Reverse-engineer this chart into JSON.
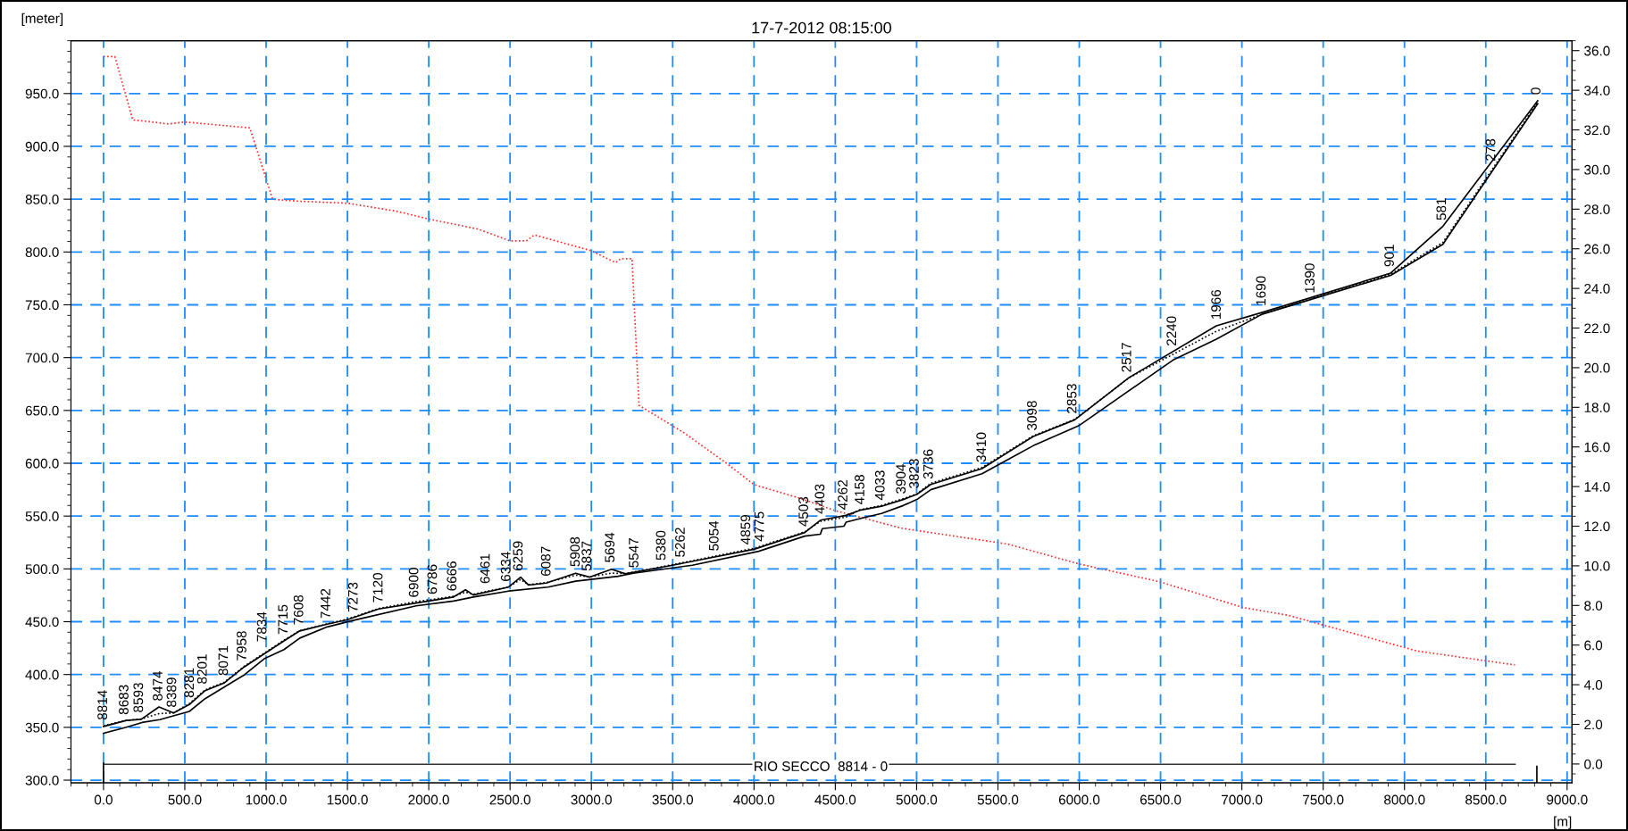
{
  "chart_data": {
    "type": "line",
    "title": "17-7-2012 08:15:00",
    "ylabel": "[meter]",
    "xlabel": "[m]",
    "xlim": [
      -200,
      9030
    ],
    "ylim": [
      297.5,
      1000
    ],
    "y2lim": [
      -0.95,
      36.5
    ],
    "xticks": [
      {
        "value": 0,
        "label": "0.0"
      },
      {
        "value": 500,
        "label": "500.0"
      },
      {
        "value": 1000,
        "label": "1000.0"
      },
      {
        "value": 1500,
        "label": "1500.0"
      },
      {
        "value": 2000,
        "label": "2000.0"
      },
      {
        "value": 2500,
        "label": "2500.0"
      },
      {
        "value": 3000,
        "label": "3000.0"
      },
      {
        "value": 3500,
        "label": "3500.0"
      },
      {
        "value": 4000,
        "label": "4000.0"
      },
      {
        "value": 4500,
        "label": "4500.0"
      },
      {
        "value": 5000,
        "label": "5000.0"
      },
      {
        "value": 5500,
        "label": "5500.0"
      },
      {
        "value": 6000,
        "label": "6000.0"
      },
      {
        "value": 6500,
        "label": "6500.0"
      },
      {
        "value": 7000,
        "label": "7000.0"
      },
      {
        "value": 7500,
        "label": "7500.0"
      },
      {
        "value": 8000,
        "label": "8000.0"
      },
      {
        "value": 8500,
        "label": "8500.0"
      },
      {
        "value": 9000,
        "label": "9000.0"
      }
    ],
    "yticks": [
      {
        "value": 300,
        "label": "300.0"
      },
      {
        "value": 350,
        "label": "350.0"
      },
      {
        "value": 400,
        "label": "400.0"
      },
      {
        "value": 450,
        "label": "450.0"
      },
      {
        "value": 500,
        "label": "500.0"
      },
      {
        "value": 550,
        "label": "550.0"
      },
      {
        "value": 600,
        "label": "600.0"
      },
      {
        "value": 650,
        "label": "650.0"
      },
      {
        "value": 700,
        "label": "700.0"
      },
      {
        "value": 750,
        "label": "750.0"
      },
      {
        "value": 800,
        "label": "800.0"
      },
      {
        "value": 850,
        "label": "850.0"
      },
      {
        "value": 900,
        "label": "900.0"
      },
      {
        "value": 950,
        "label": "950.0"
      }
    ],
    "y2ticks": [
      {
        "value": 0,
        "label": "0.0"
      },
      {
        "value": 2,
        "label": "2.0"
      },
      {
        "value": 4,
        "label": "4.0"
      },
      {
        "value": 6,
        "label": "6.0"
      },
      {
        "value": 8,
        "label": "8.0"
      },
      {
        "value": 10,
        "label": "10.0"
      },
      {
        "value": 12,
        "label": "12.0"
      },
      {
        "value": 14,
        "label": "14.0"
      },
      {
        "value": 16,
        "label": "16.0"
      },
      {
        "value": 18,
        "label": "18.0"
      },
      {
        "value": 20,
        "label": "20.0"
      },
      {
        "value": 22,
        "label": "22.0"
      },
      {
        "value": 24,
        "label": "24.0"
      },
      {
        "value": 26,
        "label": "26.0"
      },
      {
        "value": 28,
        "label": "28.0"
      },
      {
        "value": 30,
        "label": "30.0"
      },
      {
        "value": 32,
        "label": "32.0"
      },
      {
        "value": 34,
        "label": "34.0"
      },
      {
        "value": 36,
        "label": "36.0"
      }
    ],
    "grid": true,
    "legend": false,
    "marker": "none",
    "series": [
      {
        "color": "#000000",
        "line_style": "solid",
        "x": [
          0,
          140,
          232,
          341,
          431,
          528,
          625,
          741,
          867,
          1110,
          1207,
          1376,
          1500,
          1692,
          1922,
          2152,
          2226,
          2274,
          2491,
          2565,
          2613,
          2722,
          2903,
          2990,
          3124,
          3209,
          3500,
          4000,
          4312,
          4408,
          4566,
          4651,
          4784,
          4918,
          5002,
          5087,
          5402,
          5717,
          5972,
          6307,
          6843,
          7123,
          7915,
          8236,
          8819
        ],
        "values": [
          350.8,
          356.5,
          357.6,
          369.3,
          363.7,
          371.6,
          384.8,
          391.9,
          407.4,
          431.9,
          441.3,
          447.7,
          451.9,
          462.1,
          467.7,
          473.4,
          480.2,
          475.3,
          482.8,
          492.2,
          484.7,
          486.6,
          495.9,
          492.2,
          499.7,
          495.3,
          503.5,
          518.6,
          534.4,
          546.1,
          550.7,
          555.5,
          559.3,
          565.7,
          570.6,
          579.9,
          595,
          625.3,
          641.1,
          681.2,
          730.1,
          742.7,
          780,
          824.3,
          943.2
        ]
      },
      {
        "color": "#000000",
        "line_style": "dotted",
        "x": [
          0,
          140,
          232,
          341,
          431,
          528,
          625,
          741,
          867,
          1110,
          1207,
          1376,
          1500,
          1692,
          1922,
          2152,
          2226,
          2274,
          2491,
          2565,
          2613,
          2722,
          2903,
          2990,
          3124,
          3209,
          3500,
          4000,
          4312,
          4408,
          4566,
          4651,
          4784,
          4918,
          5002,
          5087,
          5402,
          5717,
          5972,
          6307,
          6843,
          7123,
          7915,
          8236,
          8819
        ],
        "values": [
          351.5,
          356.5,
          358,
          363,
          363.7,
          372.5,
          385.5,
          392.5,
          408,
          432.5,
          441.5,
          448,
          452.5,
          462.5,
          469,
          474,
          478,
          476,
          483,
          490,
          485,
          487,
          494,
          492.5,
          496,
          495.5,
          504,
          519.5,
          535,
          545,
          549,
          556,
          560,
          566.5,
          571,
          581,
          596,
          626,
          641.5,
          681,
          725,
          741,
          779,
          809,
          942
        ]
      },
      {
        "color": "#000000",
        "line_style": "solid",
        "x": [
          0,
          140,
          237,
          346,
          528,
          625,
          867,
          988,
          1110,
          1207,
          1376,
          1522,
          1922,
          2152,
          2274,
          2491,
          2734,
          2903,
          3164,
          3258,
          3621,
          4029,
          4312,
          4408,
          4420,
          4553,
          4566,
          4663,
          4784,
          4918,
          5002,
          5087,
          5402,
          5717,
          5996,
          6575,
          6843,
          7123,
          7915,
          8236,
          8819
        ],
        "values": [
          344.4,
          350.1,
          354.6,
          357.3,
          365.1,
          377.2,
          399.8,
          414.9,
          423.6,
          434.5,
          445.1,
          450.8,
          465,
          469.6,
          473.4,
          479,
          482.8,
          488.4,
          493,
          495.9,
          503.5,
          516.7,
          531,
          532.8,
          538.1,
          540.4,
          544.2,
          548,
          552.5,
          560,
          565.7,
          575,
          590.1,
          616.6,
          635.4,
          697.5,
          717.4,
          741,
          777.9,
          807.3,
          940.3
        ]
      },
      {
        "color": "#ff2a2a",
        "line_style": "dotted",
        "axis": "y2",
        "x": [
          0,
          70,
          180,
          300,
          400,
          500,
          900,
          1040,
          1200,
          1500,
          1800,
          2000,
          2300,
          2500,
          2600,
          2650,
          3000,
          3150,
          3180,
          3250,
          3293,
          3572,
          3827,
          4000,
          4287,
          4493,
          4905,
          5559,
          5996,
          6493,
          7006,
          7286,
          8078,
          8679
        ],
        "values": [
          35.7,
          35.7,
          32.5,
          32.4,
          32.3,
          32.4,
          32.1,
          28.5,
          28.4,
          28.3,
          27.9,
          27.5,
          27,
          26.4,
          26.4,
          26.7,
          25.9,
          25.3,
          25.5,
          25.5,
          18.1,
          16.7,
          15.2,
          14.1,
          13.4,
          12.8,
          11.9,
          11.1,
          10.1,
          9.2,
          7.9,
          7.5,
          5.7,
          5
        ]
      },
      {
        "color": "#333333",
        "line_style": "solid",
        "x": [
          0,
          8680
        ],
        "values": [
          315,
          315
        ]
      },
      {
        "color": "#000000",
        "line_style": "solid",
        "x": [
          0,
          0
        ],
        "values": [
          298,
          316
        ]
      },
      {
        "color": "#000000",
        "line_style": "solid",
        "x": [
          8814,
          8814
        ],
        "values": [
          298,
          313
        ]
      }
    ],
    "annotations": [
      {
        "text": "RIO SECCO  8814 - 0",
        "x": 4410,
        "y": 312
      },
      {
        "text": "8814",
        "x": 0,
        "y": 351
      },
      {
        "text": "8683",
        "x": 131,
        "y": 356
      },
      {
        "text": "8593",
        "x": 221,
        "y": 358
      },
      {
        "text": "8474",
        "x": 340,
        "y": 369
      },
      {
        "text": "8389",
        "x": 425,
        "y": 363
      },
      {
        "text": "8281",
        "x": 533,
        "y": 372
      },
      {
        "text": "8201",
        "x": 613,
        "y": 385
      },
      {
        "text": "8071",
        "x": 743,
        "y": 393
      },
      {
        "text": "7958",
        "x": 856,
        "y": 407
      },
      {
        "text": "7834",
        "x": 980,
        "y": 425
      },
      {
        "text": "7715",
        "x": 1110,
        "y": 431.9
      },
      {
        "text": "7608",
        "x": 1206,
        "y": 441
      },
      {
        "text": "7442",
        "x": 1372,
        "y": 447
      },
      {
        "text": "7273",
        "x": 1541,
        "y": 453
      },
      {
        "text": "7120",
        "x": 1694,
        "y": 462
      },
      {
        "text": "6900",
        "x": 1914,
        "y": 467
      },
      {
        "text": "6786",
        "x": 2028,
        "y": 470
      },
      {
        "text": "6666",
        "x": 2148,
        "y": 473
      },
      {
        "text": "6461",
        "x": 2353,
        "y": 480
      },
      {
        "text": "6334",
        "x": 2480,
        "y": 482
      },
      {
        "text": "6259",
        "x": 2555,
        "y": 492
      },
      {
        "text": "6087",
        "x": 2727,
        "y": 487
      },
      {
        "text": "5908",
        "x": 2906,
        "y": 496
      },
      {
        "text": "5837",
        "x": 2977,
        "y": 492
      },
      {
        "text": "5694",
        "x": 3120,
        "y": 500
      },
      {
        "text": "5547",
        "x": 3267,
        "y": 495
      },
      {
        "text": "5380",
        "x": 3434,
        "y": 502
      },
      {
        "text": "5262",
        "x": 3552,
        "y": 505
      },
      {
        "text": "5054",
        "x": 3760,
        "y": 511
      },
      {
        "text": "4859",
        "x": 3955,
        "y": 517
      },
      {
        "text": "4775",
        "x": 4039,
        "y": 520
      },
      {
        "text": "4503",
        "x": 4311,
        "y": 534
      },
      {
        "text": "4403",
        "x": 4411,
        "y": 546
      },
      {
        "text": "4262",
        "x": 4552,
        "y": 550
      },
      {
        "text": "4158",
        "x": 4656,
        "y": 555
      },
      {
        "text": "4033",
        "x": 4781,
        "y": 559
      },
      {
        "text": "3904",
        "x": 4910,
        "y": 565
      },
      {
        "text": "3823",
        "x": 4991,
        "y": 570
      },
      {
        "text": "3736",
        "x": 5078,
        "y": 579
      },
      {
        "text": "3410",
        "x": 5404,
        "y": 595
      },
      {
        "text": "3098",
        "x": 5716,
        "y": 625
      },
      {
        "text": "2853",
        "x": 5961,
        "y": 641
      },
      {
        "text": "2517",
        "x": 6297,
        "y": 680
      },
      {
        "text": "2240",
        "x": 6574,
        "y": 705
      },
      {
        "text": "1966",
        "x": 6848,
        "y": 730
      },
      {
        "text": "1690",
        "x": 7124,
        "y": 743
      },
      {
        "text": "1390",
        "x": 7424,
        "y": 755
      },
      {
        "text": "901",
        "x": 7913,
        "y": 780
      },
      {
        "text": "581",
        "x": 8233,
        "y": 824
      },
      {
        "text": "278",
        "x": 8536,
        "y": 880
      },
      {
        "text": "0",
        "x": 8814,
        "y": 943
      }
    ]
  }
}
